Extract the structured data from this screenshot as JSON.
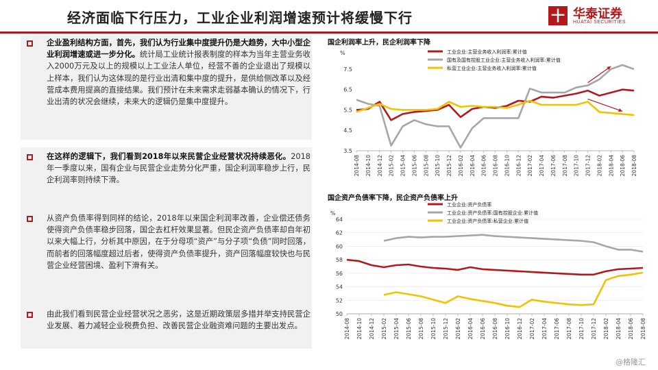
{
  "header": {
    "title": "经济面临下行压力，工业企业利润增速预计将缓慢下行",
    "logo_mark": "十",
    "logo_cn": "华泰证券",
    "logo_en": "HUATAI SECURITIES"
  },
  "paragraphs": [
    {
      "bold": "企业盈利结构方面，首先，我们认为行业集中度提升仍是大趋势，大中小型企业利润增速或进一步分化。",
      "text": "统计局工业统计报表制度的样本为当年主营业务收入2000万元及以上的规模以上工业法人单位，经营不善的企业退出了规模以上样本，我们认为这体现的是行业出清和集中度的提升，是供给侧改革以及经营成本费用提高的直接结果。我们预计在未来需求走弱基本确认的情况下，行业出清的状况会继续，未来大的逻辑仍是集中度提升。"
    },
    {
      "bold": "在这样的逻辑下，我们看到2018年以来民营企业经营状况持续恶化。",
      "text": "2018年一季度以来，国有企业与民营企业走势分化严重，国企利润率稳步上行，民企利润率则持续下滑。"
    },
    {
      "bold": "",
      "text": "从资产负债率得到同样的结论，2018年以来国企利润率改善，企业偿还债务使得资产负债率稳步回落，国企去杠杆效果显著。但民企资产负债率却自年初以来大幅上行，分析其中原因，在于分母项“资产”与分子项“负债”同时回落，而前者的回落幅度超过后者，使得资产负债率提升，资产回落幅度较快也与民营企业经营困境、盈利下滑有关。"
    },
    {
      "bold": "",
      "text": "由此我们看到民营企业经营状况之恶劣，这是近期政策层多措并举支持民营企业发展、着力减轻企业税费负担、改善民营企业融资难问题的主要出发点。"
    }
  ],
  "watermark": "@格隆汇",
  "colors": {
    "industrial": "#b3191c",
    "state": "#a6a6a6",
    "private": "#f2c200",
    "accent": "#b3191c"
  },
  "chart_data": [
    {
      "type": "line",
      "title": "国企利润率上升，民企利润率下降",
      "ylabel": "%",
      "ylim": [
        3.5,
        8.0
      ],
      "yticks": [
        3.5,
        4.5,
        5.5,
        6.5,
        7.5
      ],
      "x": [
        "2014-08",
        "2014-10",
        "2014-12",
        "2015-02",
        "2015-04",
        "2015-06",
        "2015-08",
        "2015-10",
        "2015-12",
        "2016-02",
        "2016-04",
        "2016-06",
        "2016-08",
        "2016-10",
        "2016-12",
        "2017-02",
        "2017-04",
        "2017-06",
        "2017-08",
        "2017-10",
        "2017-12",
        "2018-02",
        "2018-04",
        "2018-06",
        "2018-08"
      ],
      "series": [
        {
          "name": "工业企业:主营业务收入利润率:累计值",
          "color": "#b3191c",
          "values": [
            5.5,
            5.55,
            5.9,
            5.0,
            5.3,
            5.4,
            5.45,
            5.5,
            5.75,
            5.15,
            5.55,
            5.65,
            5.6,
            5.7,
            5.95,
            5.9,
            6.15,
            6.1,
            6.2,
            6.3,
            6.45,
            6.2,
            6.35,
            6.5,
            6.45
          ]
        },
        {
          "name": "国有及国有控股工业企业:主营业务收入利润率:累计值",
          "color": "#a6a6a6",
          "values": [
            6.0,
            5.8,
            5.7,
            3.75,
            4.7,
            5.0,
            4.8,
            4.7,
            4.7,
            3.65,
            4.6,
            5.1,
            5.1,
            5.1,
            5.1,
            6.55,
            6.35,
            6.35,
            6.35,
            6.6,
            6.7,
            7.0,
            7.5,
            7.7,
            7.5
          ]
        },
        {
          "name": "私营工业企业:主营业务收入利润率:累计值",
          "color": "#f2c200",
          "values": [
            5.4,
            5.6,
            5.8,
            5.55,
            5.5,
            5.5,
            5.5,
            5.55,
            5.9,
            5.65,
            5.7,
            5.65,
            5.65,
            5.6,
            5.75,
            5.95,
            5.75,
            5.75,
            5.75,
            5.75,
            5.9,
            5.4,
            5.35,
            5.3,
            5.25
          ]
        }
      ],
      "legend": "top"
    },
    {
      "type": "line",
      "title": "国企资产负债率下降，民企资产负债率上升",
      "ylabel": "%",
      "ylim": [
        50,
        64
      ],
      "yticks": [
        50,
        52,
        54,
        56,
        58,
        60,
        62,
        64
      ],
      "x": [
        "2014-08",
        "2014-10",
        "2014-12",
        "2015-02",
        "2015-04",
        "2015-06",
        "2015-08",
        "2015-10",
        "2015-12",
        "2016-02",
        "2016-04",
        "2016-06",
        "2016-08",
        "2016-10",
        "2016-12",
        "2017-02",
        "2017-04",
        "2017-06",
        "2017-08",
        "2017-10",
        "2017-12",
        "2018-02",
        "2018-04",
        "2018-06",
        "2018-08"
      ],
      "series": [
        {
          "name": "工业企业:资产负债率",
          "color": "#b3191c",
          "values": [
            58.0,
            57.8,
            57.2,
            56.9,
            57.2,
            57.3,
            57.0,
            56.8,
            56.7,
            56.5,
            56.9,
            56.6,
            56.5,
            56.4,
            56.3,
            56.2,
            56.1,
            56.0,
            55.9,
            55.8,
            55.8,
            56.3,
            56.6,
            56.7,
            56.8
          ]
        },
        {
          "name": "工业企业:资产负债率:国有控股企业:累计值",
          "color": "#a6a6a6",
          "values": [
            null,
            null,
            null,
            60.8,
            61.2,
            61.4,
            61.3,
            61.4,
            61.4,
            61.5,
            61.6,
            61.7,
            61.5,
            61.4,
            61.3,
            61.2,
            61.1,
            61.0,
            60.9,
            60.8,
            60.6,
            60.0,
            59.5,
            59.5,
            59.2
          ]
        },
        {
          "name": "工业企业:资产负债率:私营企业:累计值",
          "color": "#f2c200",
          "values": [
            null,
            null,
            null,
            52.8,
            53.2,
            52.9,
            52.6,
            52.1,
            51.6,
            52.6,
            52.2,
            51.9,
            51.6,
            51.2,
            51.0,
            52.1,
            51.8,
            51.6,
            51.4,
            51.3,
            51.4,
            55.0,
            55.6,
            55.8,
            56.1
          ]
        }
      ],
      "legend": "top"
    }
  ]
}
